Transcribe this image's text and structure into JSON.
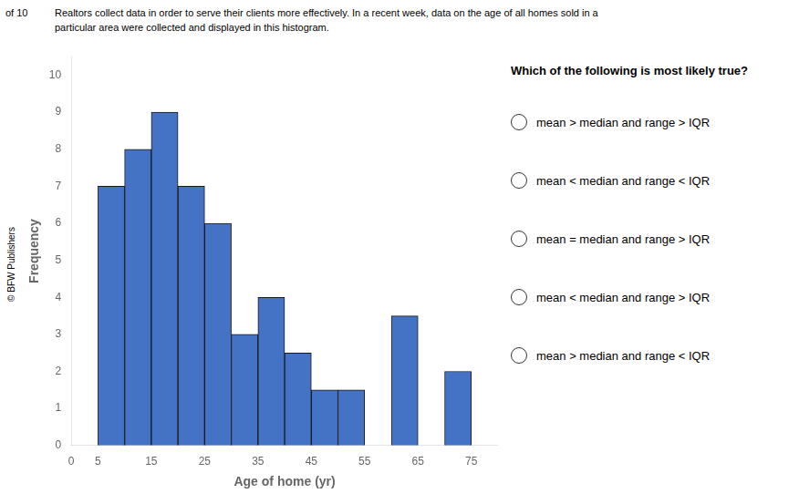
{
  "chart_data": {
    "type": "histogram",
    "xlabel": "Age of home (yr)",
    "ylabel": "Frequency",
    "bins": [
      5,
      10,
      15,
      20,
      25,
      30,
      35,
      40,
      45,
      50,
      55,
      60,
      65,
      70,
      75
    ],
    "values": [
      7,
      8,
      9,
      7,
      6,
      3,
      4,
      2.5,
      1.5,
      1.5,
      0,
      3.5,
      0,
      2
    ],
    "color": "#4472C4",
    "xlim": [
      0,
      80
    ],
    "xticks": [
      0,
      5,
      15,
      25,
      35,
      45,
      55,
      65,
      75
    ],
    "ylim": [
      0,
      10.5
    ],
    "yticks": [
      0,
      1,
      2,
      3,
      4,
      5,
      6,
      7,
      8,
      9,
      10
    ],
    "grid": false,
    "annotations": [
      "of 10",
      "Realtors collect data in order to serve their clients more effectively. In a recent week, data on the age of all homes sold in a",
      "particular area were collected and displayed in this histogram.",
      "© BFW Publishers"
    ],
    "question": "Which of the following is most likely true?",
    "options": [
      "mean > median and range > IQR",
      "mean < median and range < IQR",
      "mean = median and range > IQR",
      "mean < median and range > IQR",
      "mean > median and range < IQR"
    ]
  }
}
